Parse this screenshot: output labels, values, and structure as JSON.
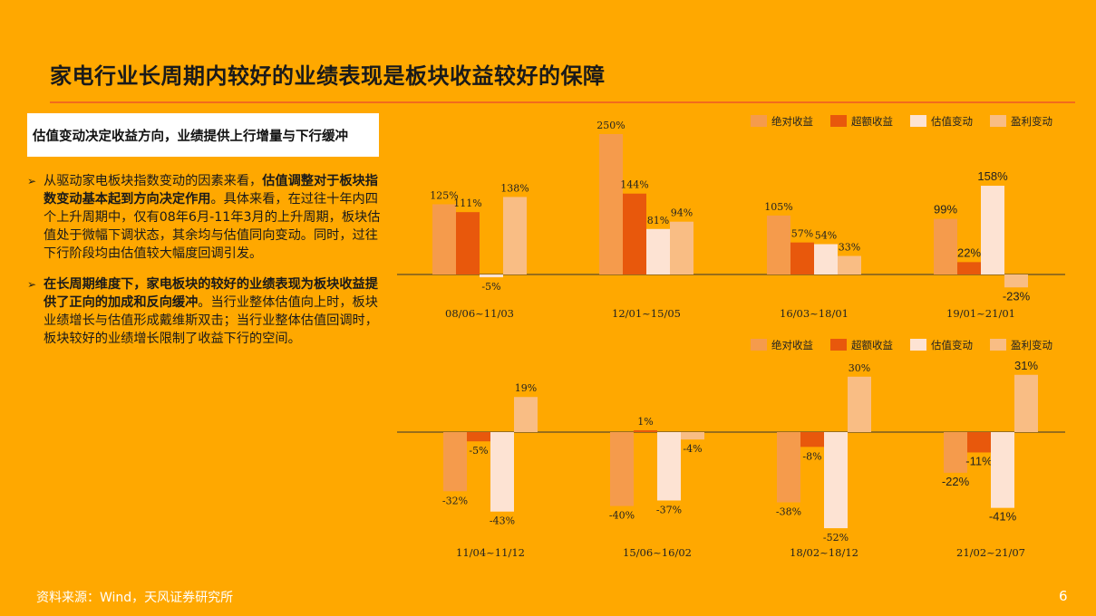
{
  "title": "家电行业长周期内较好的业绩表现是板块收益较好的保障",
  "box_heading": "估值变动决定收益方向，业绩提供上行增量与下行缓冲",
  "bullets": [
    {
      "text_pre": "从驱动家电板块指数变动的因素来看，",
      "text_bold": "估值调整对于板块指数变动基本起到方向决定作用",
      "text_post": "。具体来看，在过往十年内四个上升周期中，仅有08年6月-11年3月的上升周期，板块估值处于微幅下调状态，其余均与估值同向变动。同时，过往下行阶段均由估值较大幅度回调引发。"
    },
    {
      "text_pre": "",
      "text_bold": "在长周期维度下，家电板块的较好的业绩表现为板块收益提供了正向的加成和反向缓冲",
      "text_post": "。当行业整体估值向上时，板块业绩增长与估值形成戴维斯双击；当行业整体估值回调时，板块较好的业绩增长限制了收益下行的空间。"
    }
  ],
  "footer": {
    "source": "资料来源：Wind，天风证券研究所",
    "page": "6"
  },
  "colors": {
    "background": "#FFA800",
    "abs": "#F59B4C",
    "excess": "#E8580C",
    "valuation": "#FDE3D3",
    "earnings": "#F9BD84"
  },
  "chart_data": [
    {
      "type": "bar",
      "legend": [
        "绝对收益",
        "超额收益",
        "估值变动",
        "盈利变动"
      ],
      "legend_position": "top-right",
      "categories": [
        "08/06~11/03",
        "12/01~15/05",
        "16/03~18/01",
        "19/01~21/01"
      ],
      "series": [
        {
          "name": "绝对收益",
          "values": [
            125,
            250,
            105,
            99
          ]
        },
        {
          "name": "超额收益",
          "values": [
            111,
            144,
            57,
            22
          ]
        },
        {
          "name": "估值变动",
          "values": [
            -5,
            81,
            54,
            158
          ]
        },
        {
          "name": "盈利变动",
          "values": [
            138,
            94,
            33,
            -23
          ]
        }
      ],
      "labels": [
        [
          "125%",
          "250%",
          "105%",
          "99%"
        ],
        [
          "111%",
          "144%",
          "57%",
          "22%"
        ],
        [
          "-5%",
          "81%",
          "54%",
          "158%"
        ],
        [
          "138%",
          "94%",
          "33%",
          "-23%"
        ]
      ],
      "unit": "%",
      "ylim": [
        -30,
        260
      ]
    },
    {
      "type": "bar",
      "legend": [
        "绝对收益",
        "超额收益",
        "估值变动",
        "盈利变动"
      ],
      "legend_position": "top-right",
      "categories": [
        "11/04~11/12",
        "15/06~16/02",
        "18/02~18/12",
        "21/02~21/07"
      ],
      "series": [
        {
          "name": "绝对收益",
          "values": [
            -32,
            -40,
            -38,
            -22
          ]
        },
        {
          "name": "超额收益",
          "values": [
            -5,
            1,
            -8,
            -11
          ]
        },
        {
          "name": "估值变动",
          "values": [
            -43,
            -37,
            -52,
            -41
          ]
        },
        {
          "name": "盈利变动",
          "values": [
            19,
            -4,
            30,
            31
          ]
        }
      ],
      "labels": [
        [
          "-32%",
          "-40%",
          "-38%",
          "-22%"
        ],
        [
          "-5%",
          "1%",
          "-8%",
          "-11%"
        ],
        [
          "-43%",
          "-37%",
          "-52%",
          "-41%"
        ],
        [
          "19%",
          "-4%",
          "30%",
          "31%"
        ]
      ],
      "unit": "%",
      "ylim": [
        -55,
        35
      ]
    }
  ]
}
